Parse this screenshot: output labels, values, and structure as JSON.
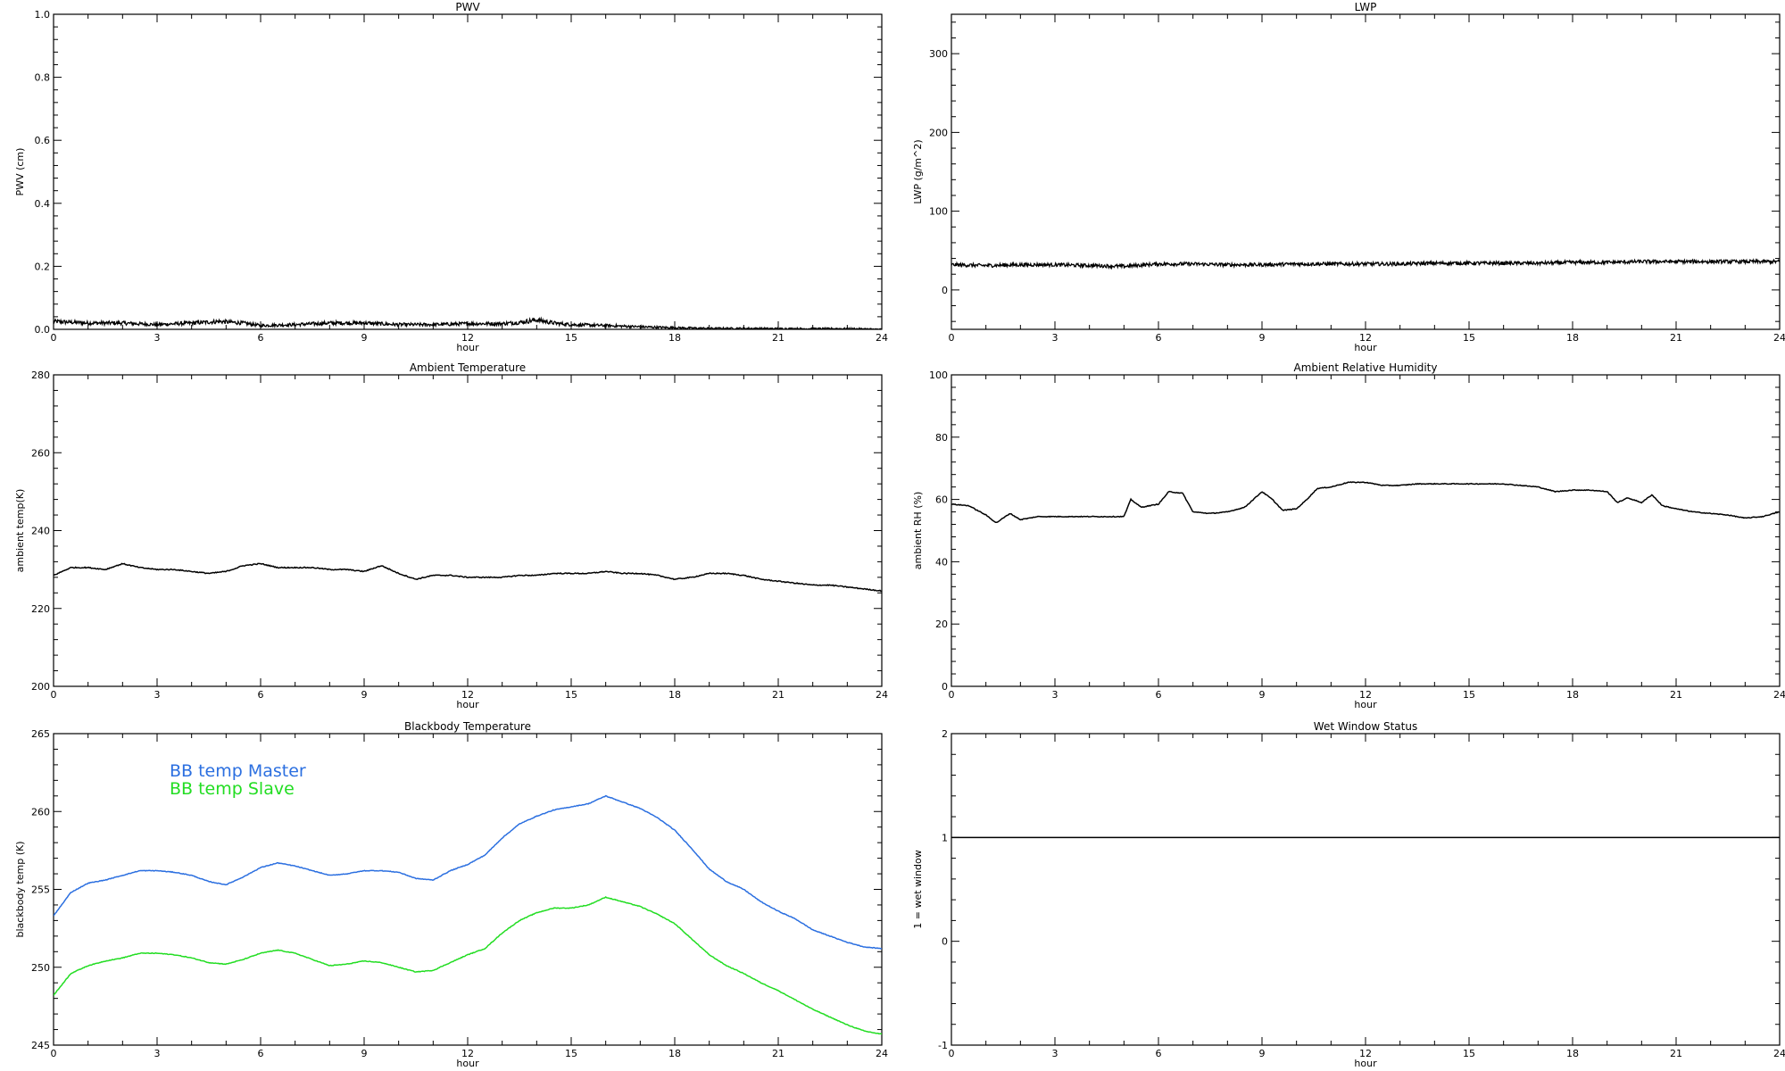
{
  "chart_data": [
    {
      "type": "line",
      "title": "PWV",
      "xlabel": "hour",
      "ylabel": "PWV (cm)",
      "xlim": [
        0,
        24
      ],
      "ylim": [
        0,
        1.0
      ],
      "xticks": [
        "0",
        "3",
        "6",
        "9",
        "12",
        "15",
        "18",
        "21",
        "24"
      ],
      "yticks": [
        "0.0",
        "0.2",
        "0.4",
        "0.6",
        "0.8",
        "1.0"
      ],
      "grid": false,
      "series": [
        {
          "color": "#000000",
          "style": "noisy",
          "x": [
            0,
            1,
            2,
            3,
            4,
            4.8,
            5.5,
            6,
            7,
            8,
            9,
            10,
            11,
            12,
            13,
            13.5,
            14,
            14.5,
            15,
            16,
            17,
            18,
            19,
            20,
            21,
            22,
            23,
            24
          ],
          "y": [
            0.025,
            0.02,
            0.02,
            0.015,
            0.02,
            0.025,
            0.02,
            0.012,
            0.015,
            0.02,
            0.02,
            0.015,
            0.015,
            0.018,
            0.018,
            0.022,
            0.03,
            0.02,
            0.015,
            0.012,
            0.008,
            0.005,
            0.003,
            0.003,
            0.002,
            0.002,
            0.002,
            0.0
          ]
        }
      ]
    },
    {
      "type": "line",
      "title": "LWP",
      "xlabel": "hour",
      "ylabel": "LWP (g/m^2)",
      "xlim": [
        0,
        24
      ],
      "ylim": [
        -50,
        350
      ],
      "xticks": [
        "0",
        "3",
        "6",
        "9",
        "12",
        "15",
        "18",
        "21",
        "24"
      ],
      "yticks": [
        "0",
        "100",
        "200",
        "300"
      ],
      "grid": false,
      "series": [
        {
          "color": "#000000",
          "style": "noisy",
          "x": [
            0,
            1,
            2,
            3,
            4,
            5,
            6,
            7,
            8,
            9,
            10,
            11,
            12,
            13,
            14,
            15,
            16,
            17,
            18,
            19,
            20,
            21,
            22,
            23,
            24
          ],
          "y": [
            32,
            31,
            32,
            32,
            31,
            30,
            33,
            33,
            32,
            32,
            33,
            33,
            33,
            33,
            34,
            34,
            34,
            34,
            35,
            35,
            36,
            36,
            36,
            36,
            36
          ]
        }
      ]
    },
    {
      "type": "line",
      "title": "Ambient Temperature",
      "xlabel": "hour",
      "ylabel": "ambient temp(K)",
      "xlim": [
        0,
        24
      ],
      "ylim": [
        200,
        280
      ],
      "xticks": [
        "0",
        "3",
        "6",
        "9",
        "12",
        "15",
        "18",
        "21",
        "24"
      ],
      "yticks": [
        "200",
        "220",
        "240",
        "260",
        "280"
      ],
      "grid": false,
      "series": [
        {
          "color": "#000000",
          "style": "solid",
          "x": [
            0,
            0.5,
            1,
            1.5,
            2,
            2.5,
            3,
            3.5,
            4,
            4.5,
            5,
            5.5,
            6,
            6.5,
            7,
            7.5,
            8,
            8.5,
            9,
            9.5,
            10,
            10.5,
            11,
            11.5,
            12,
            12.5,
            13,
            13.5,
            14,
            14.5,
            15,
            15.5,
            16,
            16.5,
            17,
            17.5,
            18,
            18.5,
            19,
            19.5,
            20,
            20.5,
            21,
            21.5,
            22,
            22.5,
            23,
            23.5,
            24
          ],
          "y": [
            228.5,
            230.5,
            230.5,
            230,
            231.5,
            230.5,
            230,
            230,
            229.5,
            229,
            229.5,
            231,
            231.5,
            230.5,
            230.5,
            230.5,
            230,
            230,
            229.5,
            231,
            229,
            227.5,
            228.5,
            228.5,
            228,
            228,
            228,
            228.5,
            228.5,
            229,
            229,
            229,
            229.5,
            229,
            229,
            228.5,
            227.5,
            228,
            229,
            229,
            228.5,
            227.5,
            227,
            226.5,
            226,
            226,
            225.5,
            225,
            224.5
          ]
        }
      ]
    },
    {
      "type": "line",
      "title": "Ambient Relative Humidity",
      "xlabel": "hour",
      "ylabel": "ambient RH (%)",
      "xlim": [
        0,
        24
      ],
      "ylim": [
        0,
        100
      ],
      "xticks": [
        "0",
        "3",
        "6",
        "9",
        "12",
        "15",
        "18",
        "21",
        "24"
      ],
      "yticks": [
        "0",
        "20",
        "40",
        "60",
        "80",
        "100"
      ],
      "grid": false,
      "series": [
        {
          "color": "#000000",
          "style": "solid",
          "x": [
            0,
            0.5,
            1,
            1.3,
            1.7,
            2,
            2.5,
            3,
            3.5,
            4,
            4.5,
            5,
            5.2,
            5.5,
            6,
            6.3,
            6.7,
            7,
            7.5,
            8,
            8.5,
            9,
            9.3,
            9.6,
            10,
            10.3,
            10.6,
            11,
            11.5,
            12,
            12.5,
            13,
            13.5,
            14,
            14.5,
            15,
            15.5,
            16,
            16.5,
            17,
            17.5,
            18,
            18.5,
            19,
            19.3,
            19.6,
            20,
            20.3,
            20.6,
            21,
            21.5,
            22,
            22.5,
            23,
            23.5,
            24
          ],
          "y": [
            58.5,
            58,
            55,
            52.5,
            55.5,
            53.5,
            54.5,
            54.5,
            54.5,
            54.5,
            54.5,
            54.5,
            60,
            57.5,
            58.5,
            62.5,
            62,
            56,
            55.5,
            56,
            57.5,
            62.5,
            60,
            56.5,
            57,
            60,
            63.5,
            64,
            65.5,
            65.5,
            64.5,
            64.5,
            65,
            65,
            65,
            65,
            65,
            65,
            64.5,
            64,
            62.5,
            63,
            63,
            62.5,
            59,
            60.5,
            59,
            61.5,
            58,
            57,
            56,
            55.5,
            55,
            54,
            54.5,
            56
          ]
        }
      ]
    },
    {
      "type": "line",
      "title": "Blackbody Temperature",
      "xlabel": "hour",
      "ylabel": "blackbody temp (K)",
      "xlim": [
        0,
        24
      ],
      "ylim": [
        245,
        265
      ],
      "xticks": [
        "0",
        "3",
        "6",
        "9",
        "12",
        "15",
        "18",
        "21",
        "24"
      ],
      "yticks": [
        "245",
        "250",
        "255",
        "260",
        "265"
      ],
      "grid": false,
      "legend": "top-left",
      "series": [
        {
          "name": "BB temp Master",
          "color": "#2b6fe0",
          "style": "solid",
          "x": [
            0,
            0.5,
            1,
            1.5,
            2,
            2.5,
            3,
            3.5,
            4,
            4.5,
            5,
            5.5,
            6,
            6.5,
            7,
            7.5,
            8,
            8.5,
            9,
            9.5,
            10,
            10.5,
            11,
            11.5,
            12,
            12.5,
            13,
            13.5,
            14,
            14.5,
            15,
            15.5,
            16,
            16.5,
            17,
            17.5,
            18,
            18.5,
            19,
            19.5,
            20,
            20.5,
            21,
            21.5,
            22,
            22.5,
            23,
            23.5,
            24
          ],
          "y": [
            253.3,
            254.8,
            255.4,
            255.6,
            255.9,
            256.2,
            256.2,
            256.1,
            255.9,
            255.5,
            255.3,
            255.8,
            256.4,
            256.7,
            256.5,
            256.2,
            255.9,
            256,
            256.2,
            256.2,
            256.1,
            255.7,
            255.6,
            256.2,
            256.6,
            257.2,
            258.3,
            259.2,
            259.7,
            260.1,
            260.3,
            260.5,
            261,
            260.6,
            260.2,
            259.6,
            258.8,
            257.6,
            256.3,
            255.5,
            255,
            254.2,
            253.6,
            253.1,
            252.4,
            252,
            251.6,
            251.3,
            251.2
          ]
        },
        {
          "name": "BB temp Slave",
          "color": "#22dd22",
          "style": "solid",
          "x": [
            0,
            0.5,
            1,
            1.5,
            2,
            2.5,
            3,
            3.5,
            4,
            4.5,
            5,
            5.5,
            6,
            6.5,
            7,
            7.5,
            8,
            8.5,
            9,
            9.5,
            10,
            10.5,
            11,
            11.5,
            12,
            12.5,
            13,
            13.5,
            14,
            14.5,
            15,
            15.5,
            16,
            16.5,
            17,
            17.5,
            18,
            18.5,
            19,
            19.5,
            20,
            20.5,
            21,
            21.5,
            22,
            22.5,
            23,
            23.5,
            24
          ],
          "y": [
            248.2,
            249.6,
            250.1,
            250.4,
            250.6,
            250.9,
            250.9,
            250.8,
            250.6,
            250.3,
            250.2,
            250.5,
            250.9,
            251.1,
            250.9,
            250.5,
            250.1,
            250.2,
            250.4,
            250.3,
            250,
            249.7,
            249.8,
            250.3,
            250.8,
            251.2,
            252.2,
            253,
            253.5,
            253.8,
            253.8,
            254,
            254.5,
            254.2,
            253.9,
            253.4,
            252.8,
            251.8,
            250.8,
            250.1,
            249.6,
            249,
            248.5,
            247.9,
            247.3,
            246.8,
            246.3,
            245.9,
            245.7
          ]
        }
      ]
    },
    {
      "type": "line",
      "title": "Wet Window Status",
      "xlabel": "hour",
      "ylabel": "1 = wet window",
      "xlim": [
        0,
        24
      ],
      "ylim": [
        -1,
        2
      ],
      "xticks": [
        "0",
        "3",
        "6",
        "9",
        "12",
        "15",
        "18",
        "21",
        "24"
      ],
      "yticks": [
        "-1",
        "0",
        "1",
        "2"
      ],
      "grid": false,
      "series": [
        {
          "color": "#000000",
          "style": "solid",
          "x": [
            0,
            24
          ],
          "y": [
            1,
            1
          ]
        }
      ]
    }
  ]
}
